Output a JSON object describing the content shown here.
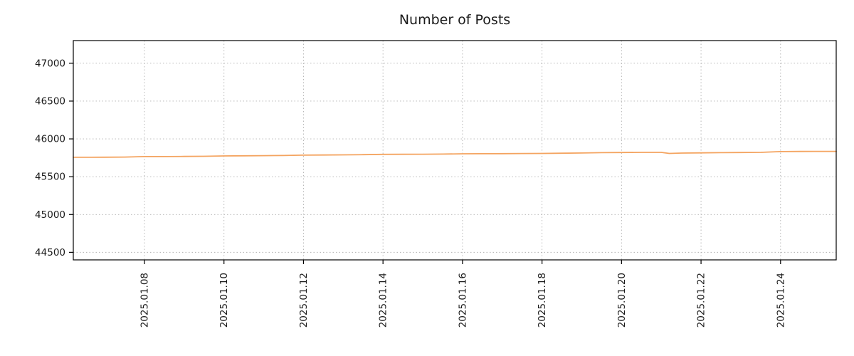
{
  "title": "Number of Posts",
  "chart_data": {
    "type": "line",
    "title": "Number of Posts",
    "xlabel": "",
    "ylabel": "",
    "x_unit": "day of January 2025 (fractional)",
    "xlim": [
      6.21,
      25.4
    ],
    "ylim": [
      44400,
      47300
    ],
    "grid": true,
    "legend": "none",
    "line_color": "#f4a460",
    "grid_color": "#b0b0b0",
    "axis_color": "#000000",
    "y_ticks": [
      {
        "value": 44500,
        "label": "44500"
      },
      {
        "value": 45000,
        "label": "45000"
      },
      {
        "value": 45500,
        "label": "45500"
      },
      {
        "value": 46000,
        "label": "46000"
      },
      {
        "value": 46500,
        "label": "46500"
      },
      {
        "value": 47000,
        "label": "47000"
      }
    ],
    "x_ticks": [
      {
        "value": 8,
        "label": "2025.01.08"
      },
      {
        "value": 10,
        "label": "2025.01.10"
      },
      {
        "value": 12,
        "label": "2025.01.12"
      },
      {
        "value": 14,
        "label": "2025.01.14"
      },
      {
        "value": 16,
        "label": "2025.01.16"
      },
      {
        "value": 18,
        "label": "2025.01.18"
      },
      {
        "value": 20,
        "label": "2025.01.20"
      },
      {
        "value": 22,
        "label": "2025.01.22"
      },
      {
        "value": 24,
        "label": "2025.01.24"
      }
    ],
    "series": [
      {
        "name": "posts",
        "x": [
          6.21,
          6.5,
          7,
          7.5,
          8,
          8.5,
          9,
          9.5,
          10,
          10.5,
          11,
          11.5,
          12,
          12.5,
          13,
          13.5,
          14,
          14.5,
          15,
          15.5,
          16,
          16.5,
          17,
          17.5,
          18,
          18.5,
          19,
          19.5,
          20,
          20.5,
          21,
          21.2,
          21.5,
          22,
          22.5,
          23,
          23.5,
          24,
          24.5,
          25,
          25.4
        ],
        "values": [
          45757,
          45757,
          45758,
          45760,
          45766,
          45766,
          45768,
          45770,
          45775,
          45777,
          45778,
          45780,
          45785,
          45787,
          45789,
          45792,
          45795,
          45796,
          45797,
          45799,
          45803,
          45804,
          45805,
          45807,
          45808,
          45810,
          45813,
          45818,
          45820,
          45822,
          45822,
          45808,
          45812,
          45815,
          45818,
          45820,
          45822,
          45832,
          45834,
          45835,
          45835
        ]
      }
    ]
  }
}
